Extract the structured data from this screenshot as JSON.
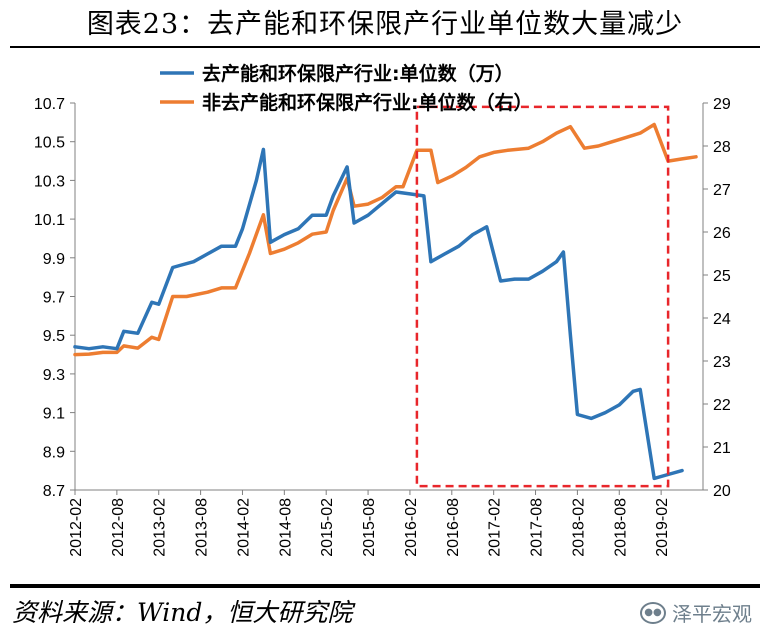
{
  "title": "图表23：去产能和环保限产行业单位数大量减少",
  "source": "资料来源：Wind，恒大研究院",
  "watermark": {
    "text": "泽平宏观",
    "icon": "wechat-icon"
  },
  "colors": {
    "series1": "#2E75B6",
    "series2": "#ED7D31",
    "highlight": "#E8262B"
  },
  "chart_data": {
    "type": "line",
    "x_tick_labels": [
      "2012-02",
      "2012-08",
      "2013-02",
      "2013-08",
      "2014-02",
      "2014-08",
      "2015-02",
      "2015-08",
      "2016-02",
      "2016-08",
      "2017-02",
      "2017-08",
      "2018-02",
      "2018-08",
      "2019-02"
    ],
    "y_left": {
      "min": 8.7,
      "max": 10.7,
      "ticks": [
        "10.7",
        "10.5",
        "10.3",
        "10.1",
        "9.9",
        "9.7",
        "9.5",
        "9.3",
        "9.1",
        "8.9",
        "8.7"
      ]
    },
    "y_right": {
      "min": 20,
      "max": 29,
      "ticks": [
        "29",
        "28",
        "27",
        "26",
        "25",
        "24",
        "23",
        "22",
        "21",
        "20"
      ]
    },
    "highlight_box": {
      "x_start": "2016-03",
      "x_end": "2019-03",
      "y_start": 8.72,
      "y_end": 10.68
    },
    "series": [
      {
        "name": "去产能和环保限产行业:单位数（万）",
        "axis": "left",
        "points": [
          [
            "2012-02",
            9.44
          ],
          [
            "2012-04",
            9.43
          ],
          [
            "2012-06",
            9.44
          ],
          [
            "2012-08",
            9.43
          ],
          [
            "2012-09",
            9.52
          ],
          [
            "2012-11",
            9.51
          ],
          [
            "2013-01",
            9.67
          ],
          [
            "2013-02",
            9.66
          ],
          [
            "2013-04",
            9.85
          ],
          [
            "2013-05",
            9.86
          ],
          [
            "2013-07",
            9.88
          ],
          [
            "2013-09",
            9.92
          ],
          [
            "2013-11",
            9.96
          ],
          [
            "2014-01",
            9.96
          ],
          [
            "2014-02",
            10.05
          ],
          [
            "2014-04",
            10.3
          ],
          [
            "2014-05",
            10.46
          ],
          [
            "2014-06",
            9.98
          ],
          [
            "2014-08",
            10.02
          ],
          [
            "2014-10",
            10.05
          ],
          [
            "2014-12",
            10.12
          ],
          [
            "2015-02",
            10.12
          ],
          [
            "2015-03",
            10.22
          ],
          [
            "2015-05",
            10.37
          ],
          [
            "2015-06",
            10.08
          ],
          [
            "2015-08",
            10.12
          ],
          [
            "2015-10",
            10.18
          ],
          [
            "2015-12",
            10.24
          ],
          [
            "2016-02",
            10.23
          ],
          [
            "2016-04",
            10.22
          ],
          [
            "2016-05",
            9.88
          ],
          [
            "2016-07",
            9.92
          ],
          [
            "2016-09",
            9.96
          ],
          [
            "2016-11",
            10.02
          ],
          [
            "2017-01",
            10.06
          ],
          [
            "2017-03",
            9.78
          ],
          [
            "2017-05",
            9.79
          ],
          [
            "2017-07",
            9.79
          ],
          [
            "2017-09",
            9.83
          ],
          [
            "2017-11",
            9.88
          ],
          [
            "2017-12",
            9.93
          ],
          [
            "2018-01",
            9.5
          ],
          [
            "2018-02",
            9.09
          ],
          [
            "2018-04",
            9.07
          ],
          [
            "2018-06",
            9.1
          ],
          [
            "2018-08",
            9.14
          ],
          [
            "2018-10",
            9.21
          ],
          [
            "2018-11",
            9.22
          ],
          [
            "2019-01",
            8.76
          ],
          [
            "2019-03",
            8.78
          ],
          [
            "2019-05",
            8.8
          ]
        ]
      },
      {
        "name": "非去产能和环保限产行业:单位数（右）",
        "axis": "right",
        "points": [
          [
            "2012-02",
            23.15
          ],
          [
            "2012-04",
            23.16
          ],
          [
            "2012-06",
            23.2
          ],
          [
            "2012-08",
            23.2
          ],
          [
            "2012-09",
            23.35
          ],
          [
            "2012-11",
            23.3
          ],
          [
            "2013-01",
            23.55
          ],
          [
            "2013-02",
            23.5
          ],
          [
            "2013-04",
            24.5
          ],
          [
            "2013-06",
            24.5
          ],
          [
            "2013-09",
            24.6
          ],
          [
            "2013-11",
            24.7
          ],
          [
            "2014-01",
            24.7
          ],
          [
            "2014-03",
            25.5
          ],
          [
            "2014-05",
            26.4
          ],
          [
            "2014-06",
            25.5
          ],
          [
            "2014-08",
            25.6
          ],
          [
            "2014-10",
            25.75
          ],
          [
            "2014-12",
            25.95
          ],
          [
            "2015-02",
            26.0
          ],
          [
            "2015-03",
            26.5
          ],
          [
            "2015-05",
            27.25
          ],
          [
            "2015-06",
            26.6
          ],
          [
            "2015-08",
            26.65
          ],
          [
            "2015-10",
            26.8
          ],
          [
            "2015-12",
            27.05
          ],
          [
            "2016-01",
            27.05
          ],
          [
            "2016-03",
            27.9
          ],
          [
            "2016-05",
            27.9
          ],
          [
            "2016-06",
            27.15
          ],
          [
            "2016-08",
            27.3
          ],
          [
            "2016-10",
            27.5
          ],
          [
            "2016-12",
            27.75
          ],
          [
            "2017-02",
            27.85
          ],
          [
            "2017-04",
            27.9
          ],
          [
            "2017-07",
            27.95
          ],
          [
            "2017-09",
            28.1
          ],
          [
            "2017-11",
            28.3
          ],
          [
            "2018-01",
            28.45
          ],
          [
            "2018-03",
            27.95
          ],
          [
            "2018-05",
            28.0
          ],
          [
            "2018-07",
            28.1
          ],
          [
            "2018-09",
            28.2
          ],
          [
            "2018-11",
            28.3
          ],
          [
            "2019-01",
            28.5
          ],
          [
            "2019-03",
            27.65
          ],
          [
            "2019-05",
            27.7
          ],
          [
            "2019-07",
            27.75
          ]
        ]
      }
    ]
  }
}
